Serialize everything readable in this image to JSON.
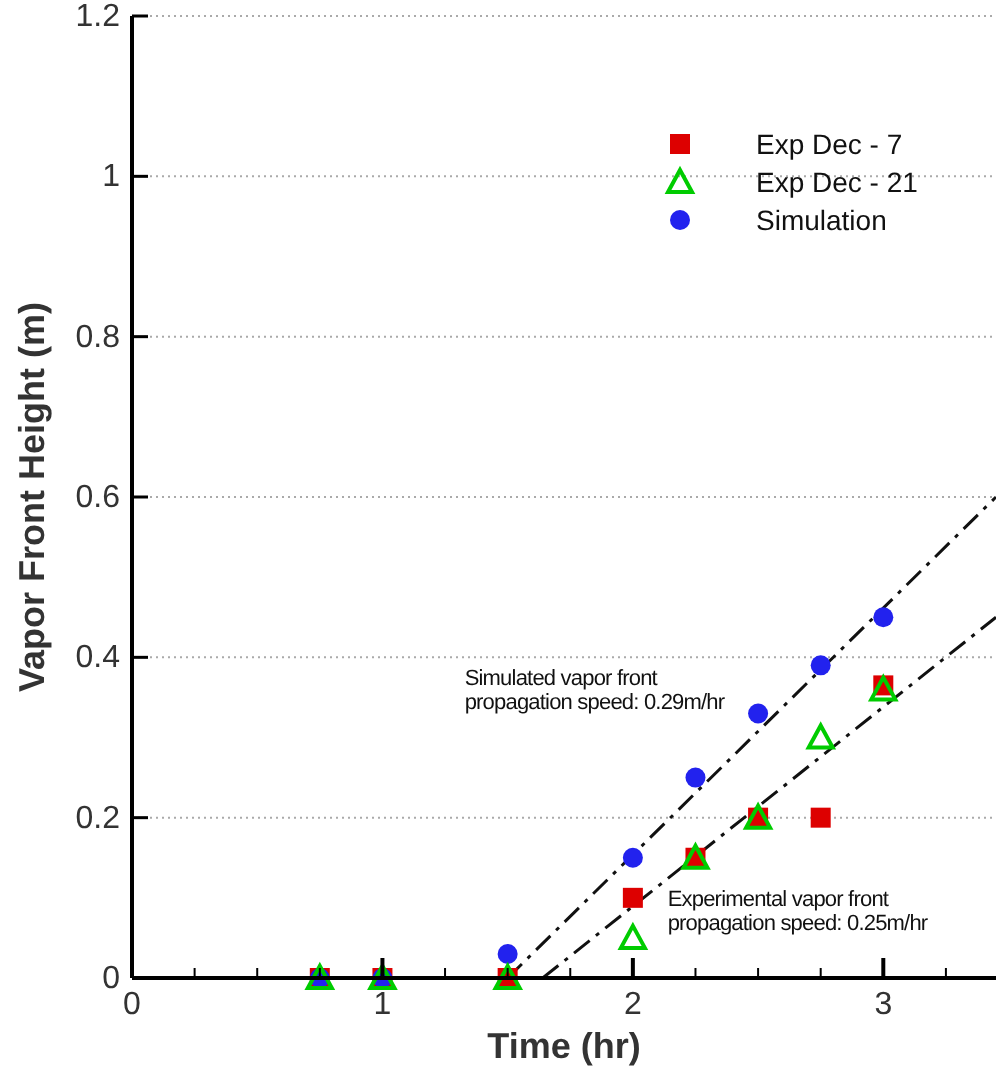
{
  "chart_data": {
    "type": "scatter",
    "xlabel": "Time (hr)",
    "ylabel": "Vapor Front Height (m)",
    "xlim": [
      0,
      3.45
    ],
    "ylim": [
      0,
      1.2
    ],
    "xticks": [
      0,
      {
        "value": 0.25,
        "label": null
      },
      {
        "value": 0.5,
        "label": null
      },
      {
        "value": 0.75,
        "label": null
      },
      1,
      {
        "value": 1.25,
        "label": null
      },
      {
        "value": 1.5,
        "label": null
      },
      {
        "value": 1.75,
        "label": null
      },
      2,
      {
        "value": 2.25,
        "label": null
      },
      {
        "value": 2.5,
        "label": null
      },
      {
        "value": 2.75,
        "label": null
      },
      3,
      {
        "value": 3.25,
        "label": null
      }
    ],
    "yticks": [
      0,
      0.2,
      0.4,
      0.6,
      0.8,
      1,
      1.2
    ],
    "grid": "y",
    "legend": "top right",
    "series": [
      {
        "name": "Exp Dec - 7",
        "color": "#dd0000",
        "marker": "square",
        "x": [
          0.75,
          1,
          1.5,
          2,
          2.25,
          2.5,
          2.75,
          3
        ],
        "values": [
          0,
          0,
          0,
          0.1,
          0.15,
          0.2,
          0.2,
          0.365
        ]
      },
      {
        "name": "Exp Dec - 21",
        "color": "#00cc00",
        "marker": "triangle",
        "x": [
          0.75,
          1,
          1.5,
          2,
          2.25,
          2.5,
          2.75,
          3
        ],
        "values": [
          0,
          0,
          0,
          0.05,
          0.15,
          0.2,
          0.3,
          0.36
        ]
      },
      {
        "name": "Simulation",
        "color": "#2222ee",
        "marker": "circle",
        "x": [
          0.75,
          1,
          1.5,
          2,
          2.25,
          2.5,
          2.75,
          3
        ],
        "values": [
          0,
          0,
          0.03,
          0.15,
          0.25,
          0.33,
          0.39,
          0.45
        ]
      },
      {
        "type": "line",
        "color": "#111111",
        "line_style": "dashed",
        "x": [
          1.5,
          3.45
        ],
        "values": [
          0,
          0.6
        ]
      },
      {
        "type": "line",
        "color": "#111111",
        "line_style": "dashed",
        "x": [
          1.64,
          3.45
        ],
        "values": [
          0,
          0.45
        ]
      }
    ],
    "annotations": [
      "Simulated vapor front propagation speed: 0.29m/hr",
      "Experimental vapor front propagation speed: 0.25m/hr"
    ]
  }
}
